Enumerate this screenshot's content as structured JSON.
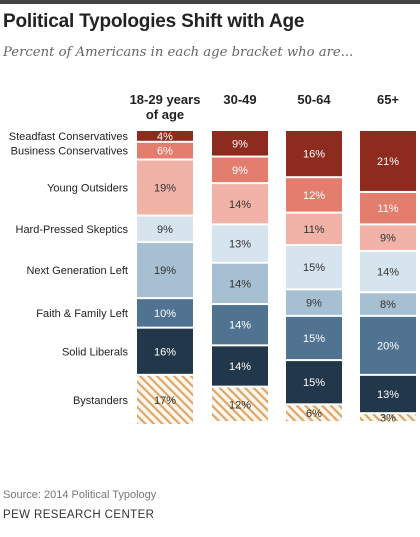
{
  "page": {
    "title": "Political Typologies Shift with Age",
    "subtitle": "Percent of Americans in each age bracket who are...",
    "source": "Source: 2014 Political Typology",
    "org": "PEW RESEARCH CENTER"
  },
  "chart_data": {
    "type": "bar",
    "stacked": true,
    "title": "Political Typologies Shift with Age",
    "subtitle": "Percent of Americans in each age bracket who are...",
    "unit": "%",
    "categories": [
      "18-29 years of age",
      "30-49",
      "50-64",
      "65+"
    ],
    "series": [
      {
        "name": "Steadfast Conservatives",
        "color": "#8e2a1e",
        "values": [
          4,
          9,
          16,
          21
        ]
      },
      {
        "name": "Business Conservatives",
        "color": "#e37e6f",
        "values": [
          6,
          9,
          12,
          11
        ]
      },
      {
        "name": "Young Outsiders",
        "color": "#f1b3a8",
        "values": [
          19,
          14,
          11,
          9
        ]
      },
      {
        "name": "Hard-Pressed Skeptics",
        "color": "#d6e4ee",
        "values": [
          9,
          13,
          15,
          14
        ]
      },
      {
        "name": "Next Generation Left",
        "color": "#a7c0d1",
        "values": [
          19,
          14,
          9,
          8
        ]
      },
      {
        "name": "Faith & Family Left",
        "color": "#4f7390",
        "values": [
          10,
          14,
          15,
          20
        ]
      },
      {
        "name": "Solid Liberals",
        "color": "#22384a",
        "values": [
          16,
          14,
          15,
          13
        ]
      },
      {
        "name": "Bystanders",
        "color": "#d9a86a",
        "pattern": "hatch",
        "values": [
          17,
          12,
          6,
          3
        ]
      }
    ]
  }
}
